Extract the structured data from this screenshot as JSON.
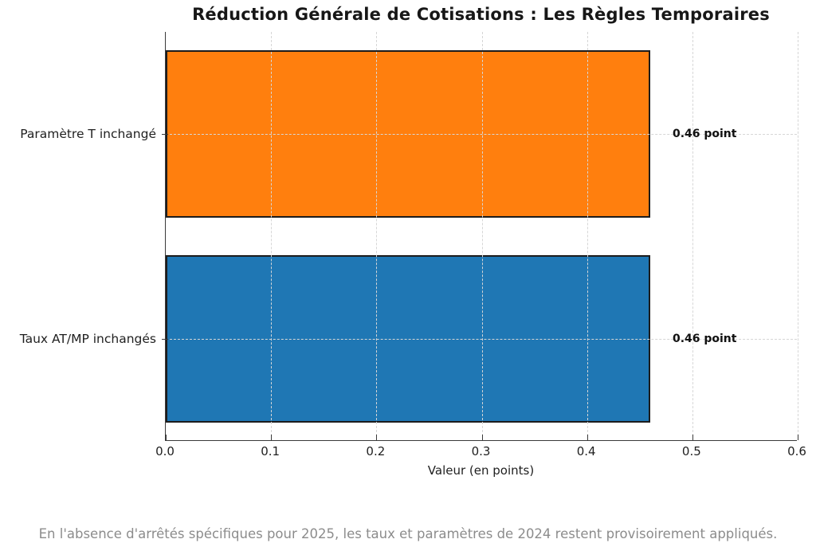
{
  "chart_data": {
    "type": "bar",
    "orientation": "horizontal",
    "title": "Réduction Générale de Cotisations : Les Règles Temporaires",
    "categories": [
      "Paramètre T inchangé",
      "Taux AT/MP inchangés"
    ],
    "values": [
      0.46,
      0.46
    ],
    "value_labels": [
      "0.46 point",
      "0.46 point"
    ],
    "bar_colors": [
      "#ff7f0e",
      "#1f77b4"
    ],
    "bar_edge_color": "#1c1c1c",
    "xlabel": "Valeur (en points)",
    "ylabel": "",
    "xlim": [
      0,
      0.6
    ],
    "xticks": [
      "0.0",
      "0.1",
      "0.2",
      "0.3",
      "0.4",
      "0.5",
      "0.6"
    ],
    "grid": "dashed",
    "legend": "none",
    "note": "En l'absence d'arrêtés spécifiques pour 2025, les taux et paramètres de 2024 restent provisoirement appliqués."
  }
}
